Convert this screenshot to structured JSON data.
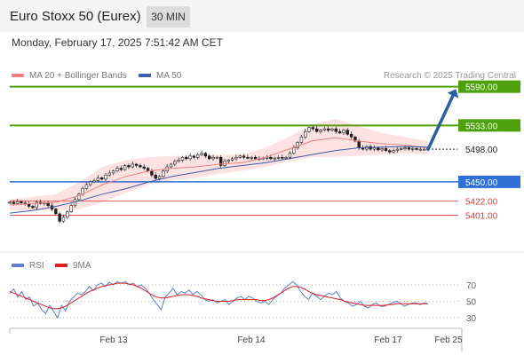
{
  "header": {
    "title": "Euro Stoxx 50 (Eurex)",
    "timeframe": "30 MIN",
    "datetime": "Monday, February 17, 2025 7:51:42 AM CET"
  },
  "legend": {
    "ma20_label": "MA 20 + Bollinger Bands",
    "ma50_label": "MA 50",
    "credit": "Research © 2025 Trading Central"
  },
  "rsi_legend": {
    "rsi_label": "RSI",
    "ma_label": "9MA"
  },
  "colors": {
    "resistance": "#4ea10a",
    "support": "#2f6fd6",
    "pivot": "#333333",
    "minor_support": "#e23a3a",
    "ma20": "#f08080",
    "ma50": "#3a5ea8",
    "bollinger_fill": "#fdd8d8",
    "arrow": "#2a5fa8",
    "rsi": "#5b7fd6",
    "rsi_ma": "#e02020"
  },
  "chart_data": [
    {
      "type": "candlestick",
      "title": "Euro Stoxx 50 (Eurex)",
      "timeframe": "30 MIN",
      "ylim": [
        5380,
        5600
      ],
      "x_ticks": [
        "Feb 13",
        "Feb 14",
        "Feb 17",
        "Feb 25"
      ],
      "series": [
        {
          "name": "MA 20 + Bollinger Bands",
          "values": [
            5416,
            5418,
            5420,
            5430,
            5446,
            5458,
            5466,
            5470,
            5472,
            5476,
            5478,
            5486,
            5498,
            5510,
            5515,
            5510,
            5506,
            5504,
            5500
          ]
        },
        {
          "name": "MA 50",
          "values": [
            5404,
            5408,
            5414,
            5422,
            5432,
            5440,
            5450,
            5458,
            5464,
            5470,
            5474,
            5478,
            5484,
            5490,
            5496,
            5500,
            5501,
            5502,
            5501
          ]
        }
      ],
      "levels": [
        {
          "label": "5590.00",
          "value": 5590,
          "kind": "resistance"
        },
        {
          "label": "5533.00",
          "value": 5533,
          "kind": "resistance"
        },
        {
          "label": "5498.00",
          "value": 5498,
          "kind": "pivot"
        },
        {
          "label": "5450.00",
          "value": 5450,
          "kind": "support"
        },
        {
          "label": "5422.00",
          "value": 5422,
          "kind": "minor_support"
        },
        {
          "label": "5401.00",
          "value": 5401,
          "kind": "minor_support"
        }
      ],
      "closes": [
        5420,
        5418,
        5421,
        5419,
        5417,
        5414,
        5412,
        5420,
        5418,
        5419,
        5415,
        5410,
        5403,
        5392,
        5398,
        5406,
        5415,
        5424,
        5432,
        5440,
        5446,
        5450,
        5452,
        5456,
        5454,
        5460,
        5463,
        5466,
        5470,
        5468,
        5474,
        5472,
        5476,
        5474,
        5472,
        5470,
        5466,
        5460,
        5455,
        5458,
        5466,
        5472,
        5476,
        5480,
        5482,
        5486,
        5484,
        5488,
        5486,
        5490,
        5492,
        5488,
        5484,
        5486,
        5486,
        5474,
        5480,
        5482,
        5484,
        5486,
        5488,
        5486,
        5485,
        5486,
        5484,
        5484,
        5485,
        5486,
        5484,
        5485,
        5486,
        5485,
        5486,
        5492,
        5500,
        5508,
        5516,
        5524,
        5530,
        5528,
        5524,
        5526,
        5528,
        5526,
        5528,
        5524,
        5522,
        5526,
        5520,
        5516,
        5510,
        5500,
        5498,
        5502,
        5498,
        5500,
        5497,
        5499,
        5496,
        5494,
        5496,
        5498,
        5499,
        5500,
        5498,
        5499,
        5498,
        5498,
        5498,
        5499
      ],
      "target_arrow": {
        "from": 5498,
        "to": 5590
      }
    },
    {
      "type": "line",
      "title": "",
      "ylim": [
        20,
        80
      ],
      "y_ticks": [
        70,
        50,
        30
      ],
      "series": [
        {
          "name": "RSI",
          "values": [
            60,
            65,
            55,
            62,
            52,
            55,
            44,
            48,
            40,
            35,
            45,
            38,
            30,
            45,
            38,
            50,
            55,
            60,
            58,
            62,
            68,
            63,
            70,
            72,
            68,
            73,
            70,
            74,
            72,
            74,
            70,
            72,
            68,
            70,
            66,
            60,
            52,
            46,
            40,
            55,
            60,
            66,
            58,
            62,
            60,
            64,
            58,
            62,
            58,
            52,
            50,
            52,
            48,
            50,
            52,
            46,
            50,
            54,
            56,
            52,
            56,
            54,
            50,
            48,
            50,
            46,
            52,
            56,
            60,
            66,
            70,
            74,
            70,
            62,
            56,
            52,
            60,
            56,
            52,
            56,
            60,
            58,
            62,
            54,
            50,
            48,
            44,
            46,
            50,
            44,
            42,
            46,
            48,
            44,
            44,
            46,
            48,
            50,
            48,
            44,
            46,
            48,
            48,
            46,
            48,
            47
          ]
        },
        {
          "name": "9MA",
          "values": [
            62,
            60,
            58,
            56,
            54,
            52,
            50,
            48,
            46,
            44,
            42,
            41,
            41,
            42,
            44,
            47,
            50,
            53,
            56,
            59,
            62,
            64,
            66,
            68,
            69,
            70,
            71,
            72,
            72,
            72,
            71,
            70,
            68,
            66,
            63,
            60,
            57,
            55,
            54,
            54,
            55,
            56,
            57,
            58,
            58,
            58,
            57,
            56,
            54,
            53,
            52,
            51,
            50,
            50,
            50,
            50,
            51,
            52,
            52,
            52,
            52,
            52,
            52,
            51,
            51,
            52,
            54,
            57,
            60,
            63,
            66,
            68,
            68,
            67,
            65,
            62,
            60,
            58,
            57,
            56,
            55,
            54,
            53,
            52,
            50,
            49,
            48,
            47,
            46,
            45,
            45,
            45,
            45,
            45,
            45,
            46,
            46,
            47,
            47,
            47,
            47,
            47,
            47,
            47,
            47,
            47
          ]
        }
      ]
    }
  ]
}
